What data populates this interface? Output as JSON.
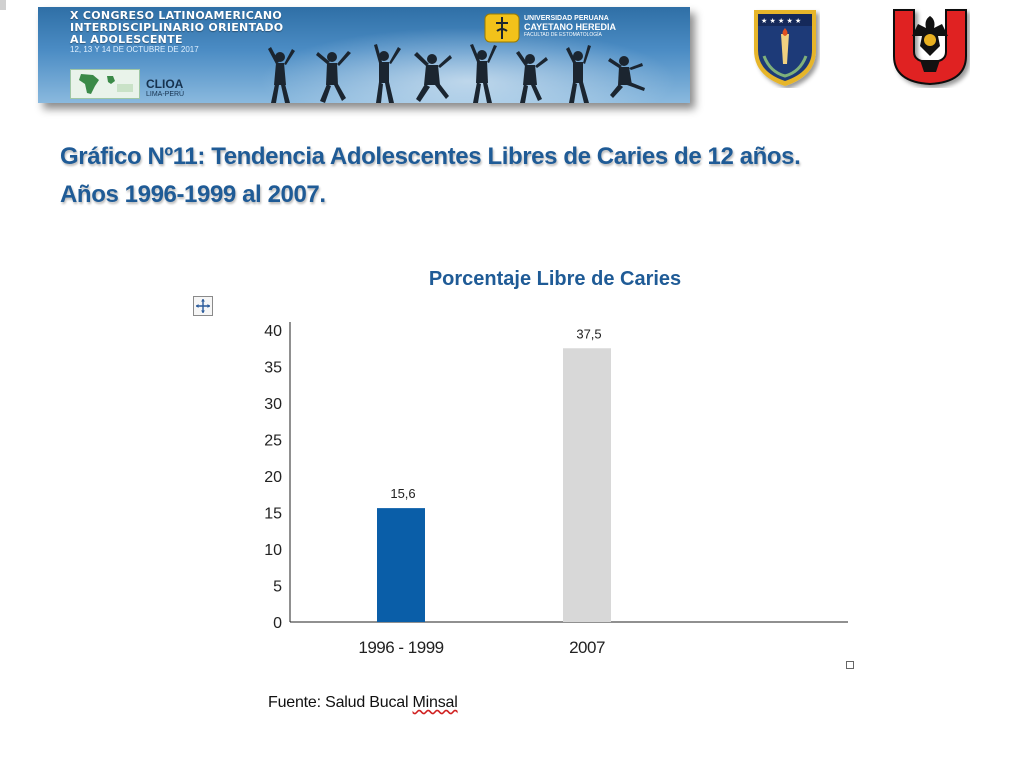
{
  "banner": {
    "line1": "X CONGRESO LATINOAMERICANO",
    "line2": "INTERDISCIPLINARIO ORIENTADO",
    "line3": "AL ADOLESCENTE",
    "dates": "12, 13 Y 14 DE OCTUBRE DE 2017",
    "org_name": "CLIOA",
    "org_place": "LIMA-PERÚ",
    "university_line1": "UNIVERSIDAD PERUANA",
    "university_line2": "CAYETANO HEREDIA",
    "university_line3": "FACULTAD DE ESTOMATOLOGÍA"
  },
  "heading": {
    "line1": "Gráfico Nº11: Tendencia Adolescentes Libres de Caries de 12 años.",
    "line2": "Años 1996-1999 al 2007."
  },
  "colors": {
    "heading": "#1f5b96",
    "bar_1996": "#0a5ea8",
    "bar_2007": "#d8d8d8"
  },
  "chart_data": {
    "type": "bar",
    "title": "Porcentaje Libre de Caries",
    "categories": [
      "1996 - 1999",
      "2007"
    ],
    "values": [
      15.6,
      37.5
    ],
    "value_labels": [
      "15,6",
      "37,5"
    ],
    "bar_colors": [
      "#0a5ea8",
      "#d8d8d8"
    ],
    "ylim": [
      0,
      40
    ],
    "yticks": [
      0,
      5,
      10,
      15,
      20,
      25,
      30,
      35,
      40
    ],
    "grid": false,
    "legend": "none"
  },
  "source": {
    "prefix": "Fuente: Salud Bucal ",
    "underlined": "Minsal"
  }
}
